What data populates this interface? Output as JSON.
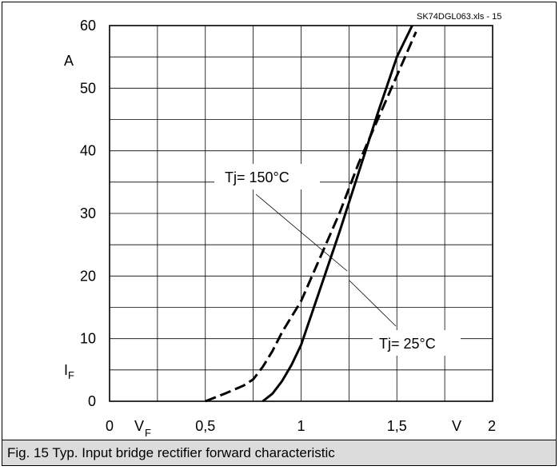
{
  "chart_data": {
    "type": "line",
    "source_tag": "SK74DGL063.xls  - 15",
    "caption": "Fig. 15 Typ. Input bridge rectifier forward characteristic",
    "xlabel": "V",
    "xlabel_sub": "F",
    "x_unit": "V",
    "ylabel": "I",
    "ylabel_sub": "F",
    "y_unit": "A",
    "xlim": [
      0,
      2
    ],
    "ylim": [
      0,
      60
    ],
    "x_ticks": [
      0,
      0.5,
      1,
      1.5,
      2
    ],
    "x_tick_labels": [
      "0",
      "0,5",
      "1",
      "1,5",
      "2"
    ],
    "y_ticks": [
      0,
      10,
      20,
      30,
      40,
      50,
      60
    ],
    "y_tick_labels": [
      "0",
      "10",
      "20",
      "30",
      "40",
      "50",
      "60"
    ],
    "grid": true,
    "series": [
      {
        "name": "Tj= 150°C",
        "style": "dashed",
        "x": [
          0.5,
          0.6,
          0.7,
          0.75,
          0.8,
          0.85,
          0.9,
          0.95,
          1.0,
          1.1,
          1.2,
          1.3,
          1.4,
          1.5,
          1.6
        ],
        "y": [
          0,
          1.2,
          2.5,
          3.5,
          5.5,
          8,
          11,
          13.5,
          16,
          23,
          30,
          38,
          45,
          52,
          59
        ]
      },
      {
        "name": "Tj= 25°C",
        "style": "solid",
        "x": [
          0.8,
          0.85,
          0.9,
          0.95,
          1.0,
          1.05,
          1.1,
          1.2,
          1.3,
          1.4,
          1.5,
          1.58
        ],
        "y": [
          0,
          1.2,
          3.2,
          5.8,
          9,
          13.5,
          18,
          27,
          36.5,
          46,
          55,
          60
        ]
      }
    ],
    "annotations": [
      {
        "text": "Tj= 150°C",
        "series": "Tj= 150°C"
      },
      {
        "text": "Tj= 25°C",
        "series": "Tj= 25°C"
      }
    ]
  }
}
